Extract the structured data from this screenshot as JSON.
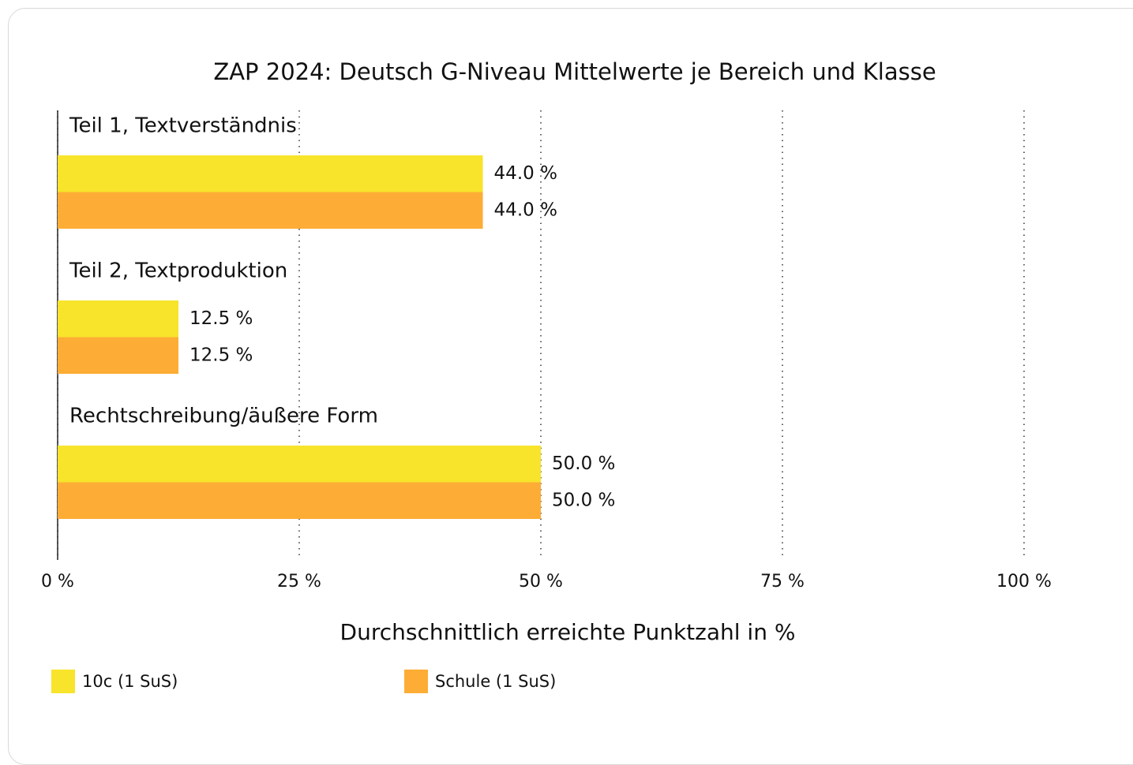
{
  "chart_data": {
    "type": "bar",
    "orientation": "horizontal",
    "title": "ZAP 2024: Deutsch G-Niveau Mittelwerte je Bereich und Klasse",
    "categories": [
      "Teil 1, Textverständnis",
      "Teil 2, Textproduktion",
      "Rechtschreibung/äußere Form"
    ],
    "series": [
      {
        "name": "10c (1 SuS)",
        "color": "#f7e42b",
        "values": [
          44.0,
          12.5,
          50.0
        ],
        "value_labels": [
          "44.0 %",
          "12.5 %",
          "50.0 %"
        ]
      },
      {
        "name": "Schule (1 SuS)",
        "color": "#fdad35",
        "values": [
          44.0,
          12.5,
          50.0
        ],
        "value_labels": [
          "44.0 %",
          "12.5 %",
          "50.0 %"
        ]
      }
    ],
    "xlim": [
      0,
      100
    ],
    "xticks": [
      {
        "value": 0,
        "label": "0 %"
      },
      {
        "value": 25,
        "label": "25 %"
      },
      {
        "value": 50,
        "label": "50 %"
      },
      {
        "value": 75,
        "label": "75 %"
      },
      {
        "value": 100,
        "label": "100 %"
      }
    ],
    "xlabel": "Durchschnittlich erreichte Punktzahl in %",
    "grid": true
  }
}
